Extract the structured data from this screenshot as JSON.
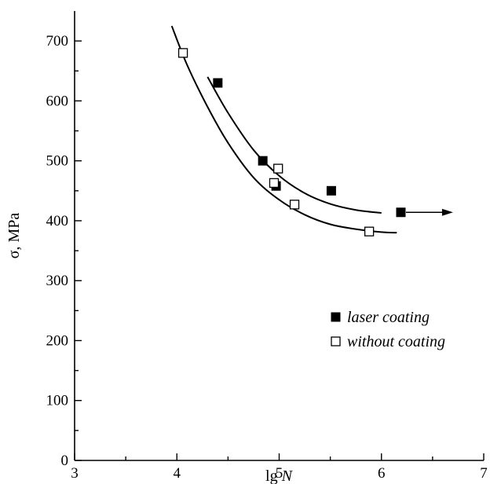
{
  "chart_data": {
    "type": "scatter",
    "title": "",
    "xlabel_main": "lg ",
    "xlabel_italic": "N",
    "ylabel": "σ, MPa",
    "xlim": [
      3,
      7
    ],
    "ylim": [
      0,
      750
    ],
    "xticks": [
      "3",
      "4",
      "5",
      "6",
      "7"
    ],
    "yticks": [
      "0",
      "100",
      "200",
      "300",
      "400",
      "500",
      "600",
      "700"
    ],
    "grid": false,
    "legend_position": "lower-right",
    "series": [
      {
        "name": "laser coating",
        "marker": "filled-square",
        "color": "#000000",
        "points": [
          [
            4.4,
            630
          ],
          [
            4.84,
            500
          ],
          [
            4.97,
            458
          ],
          [
            5.51,
            450
          ],
          [
            6.19,
            414
          ]
        ],
        "arrow_from_last_point_to_x": 6.7,
        "fit_curve": [
          [
            4.3,
            640
          ],
          [
            4.5,
            580
          ],
          [
            4.75,
            518
          ],
          [
            5.0,
            475
          ],
          [
            5.25,
            446
          ],
          [
            5.5,
            428
          ],
          [
            5.75,
            418
          ],
          [
            6.0,
            413
          ]
        ]
      },
      {
        "name": "without coating",
        "marker": "open-square",
        "color": "#000000",
        "points": [
          [
            4.06,
            680
          ],
          [
            4.95,
            463
          ],
          [
            4.99,
            487
          ],
          [
            5.15,
            427
          ],
          [
            5.88,
            382
          ]
        ],
        "fit_curve": [
          [
            3.95,
            725
          ],
          [
            4.1,
            660
          ],
          [
            4.3,
            590
          ],
          [
            4.5,
            530
          ],
          [
            4.75,
            472
          ],
          [
            5.0,
            435
          ],
          [
            5.25,
            410
          ],
          [
            5.5,
            394
          ],
          [
            5.75,
            386
          ],
          [
            6.0,
            381
          ],
          [
            6.15,
            380
          ]
        ]
      }
    ]
  }
}
